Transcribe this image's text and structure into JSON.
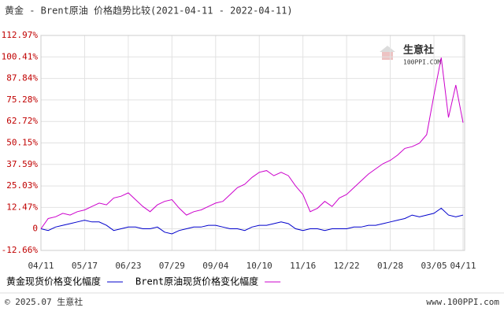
{
  "chart_data": {
    "type": "line",
    "title": "黄金 - Brent原油 价格趋势比较(2021-04-11 - 2022-04-11)",
    "categories": [
      "04/11",
      null,
      null,
      null,
      null,
      null,
      "05/17",
      null,
      null,
      null,
      null,
      null,
      "06/23",
      null,
      null,
      null,
      null,
      null,
      "07/29",
      null,
      null,
      null,
      null,
      null,
      "09/04",
      null,
      null,
      null,
      null,
      null,
      "10/10",
      null,
      null,
      null,
      null,
      null,
      "11/16",
      null,
      null,
      null,
      null,
      null,
      "12/22",
      null,
      null,
      null,
      null,
      null,
      "01/28",
      null,
      null,
      null,
      null,
      null,
      "03/05",
      null,
      null,
      null,
      "04/11"
    ],
    "series": [
      {
        "name": "黄金现货价格变化幅度",
        "color": "#0000cc",
        "values": [
          0,
          -1,
          1,
          2,
          3,
          4,
          5,
          4,
          4,
          2,
          -1,
          0,
          1,
          1,
          0,
          0,
          1,
          -2,
          -3,
          -1,
          0,
          1,
          1,
          2,
          2,
          1,
          0,
          0,
          -1,
          1,
          2,
          2,
          3,
          4,
          3,
          0,
          -1,
          0,
          0,
          -1,
          0,
          0,
          0,
          1,
          1,
          2,
          2,
          3,
          4,
          5,
          6,
          8,
          7,
          8,
          9,
          12,
          8,
          7,
          8
        ]
      },
      {
        "name": "Brent原油现货价格变化幅度",
        "color": "#cc00cc",
        "values": [
          0,
          6,
          7,
          9,
          8,
          10,
          11,
          13,
          15,
          14,
          18,
          19,
          21,
          17,
          13,
          10,
          14,
          16,
          17,
          12,
          8,
          10,
          11,
          13,
          15,
          16,
          20,
          24,
          26,
          30,
          33,
          34,
          31,
          33,
          31,
          25,
          20,
          10,
          12,
          16,
          13,
          18,
          20,
          24,
          28,
          32,
          35,
          38,
          40,
          43,
          47,
          48,
          50,
          55,
          78,
          100,
          65,
          84,
          62
        ]
      }
    ],
    "ylim": [
      -12.66,
      112.97
    ],
    "yticks": [
      {
        "value": -12.66,
        "label": "-12.66%"
      },
      0,
      {
        "value": 12.47,
        "label": "12.47%"
      },
      {
        "value": 25.03,
        "label": "25.03%"
      },
      {
        "value": 37.59,
        "label": "37.59%"
      },
      {
        "value": 50.15,
        "label": "50.15%"
      },
      {
        "value": 62.72,
        "label": "62.72%"
      },
      {
        "value": 75.28,
        "label": "75.28%"
      },
      {
        "value": 87.84,
        "label": "87.84%"
      },
      {
        "value": 100.41,
        "label": "100.41%"
      },
      {
        "value": 112.97,
        "label": "112.97%"
      }
    ],
    "grid": true,
    "watermark": [
      "生意社",
      "100PPI.COM"
    ],
    "footer": {
      "left": "© 2025.07 生意社",
      "right": "www.100PPI.com"
    }
  }
}
